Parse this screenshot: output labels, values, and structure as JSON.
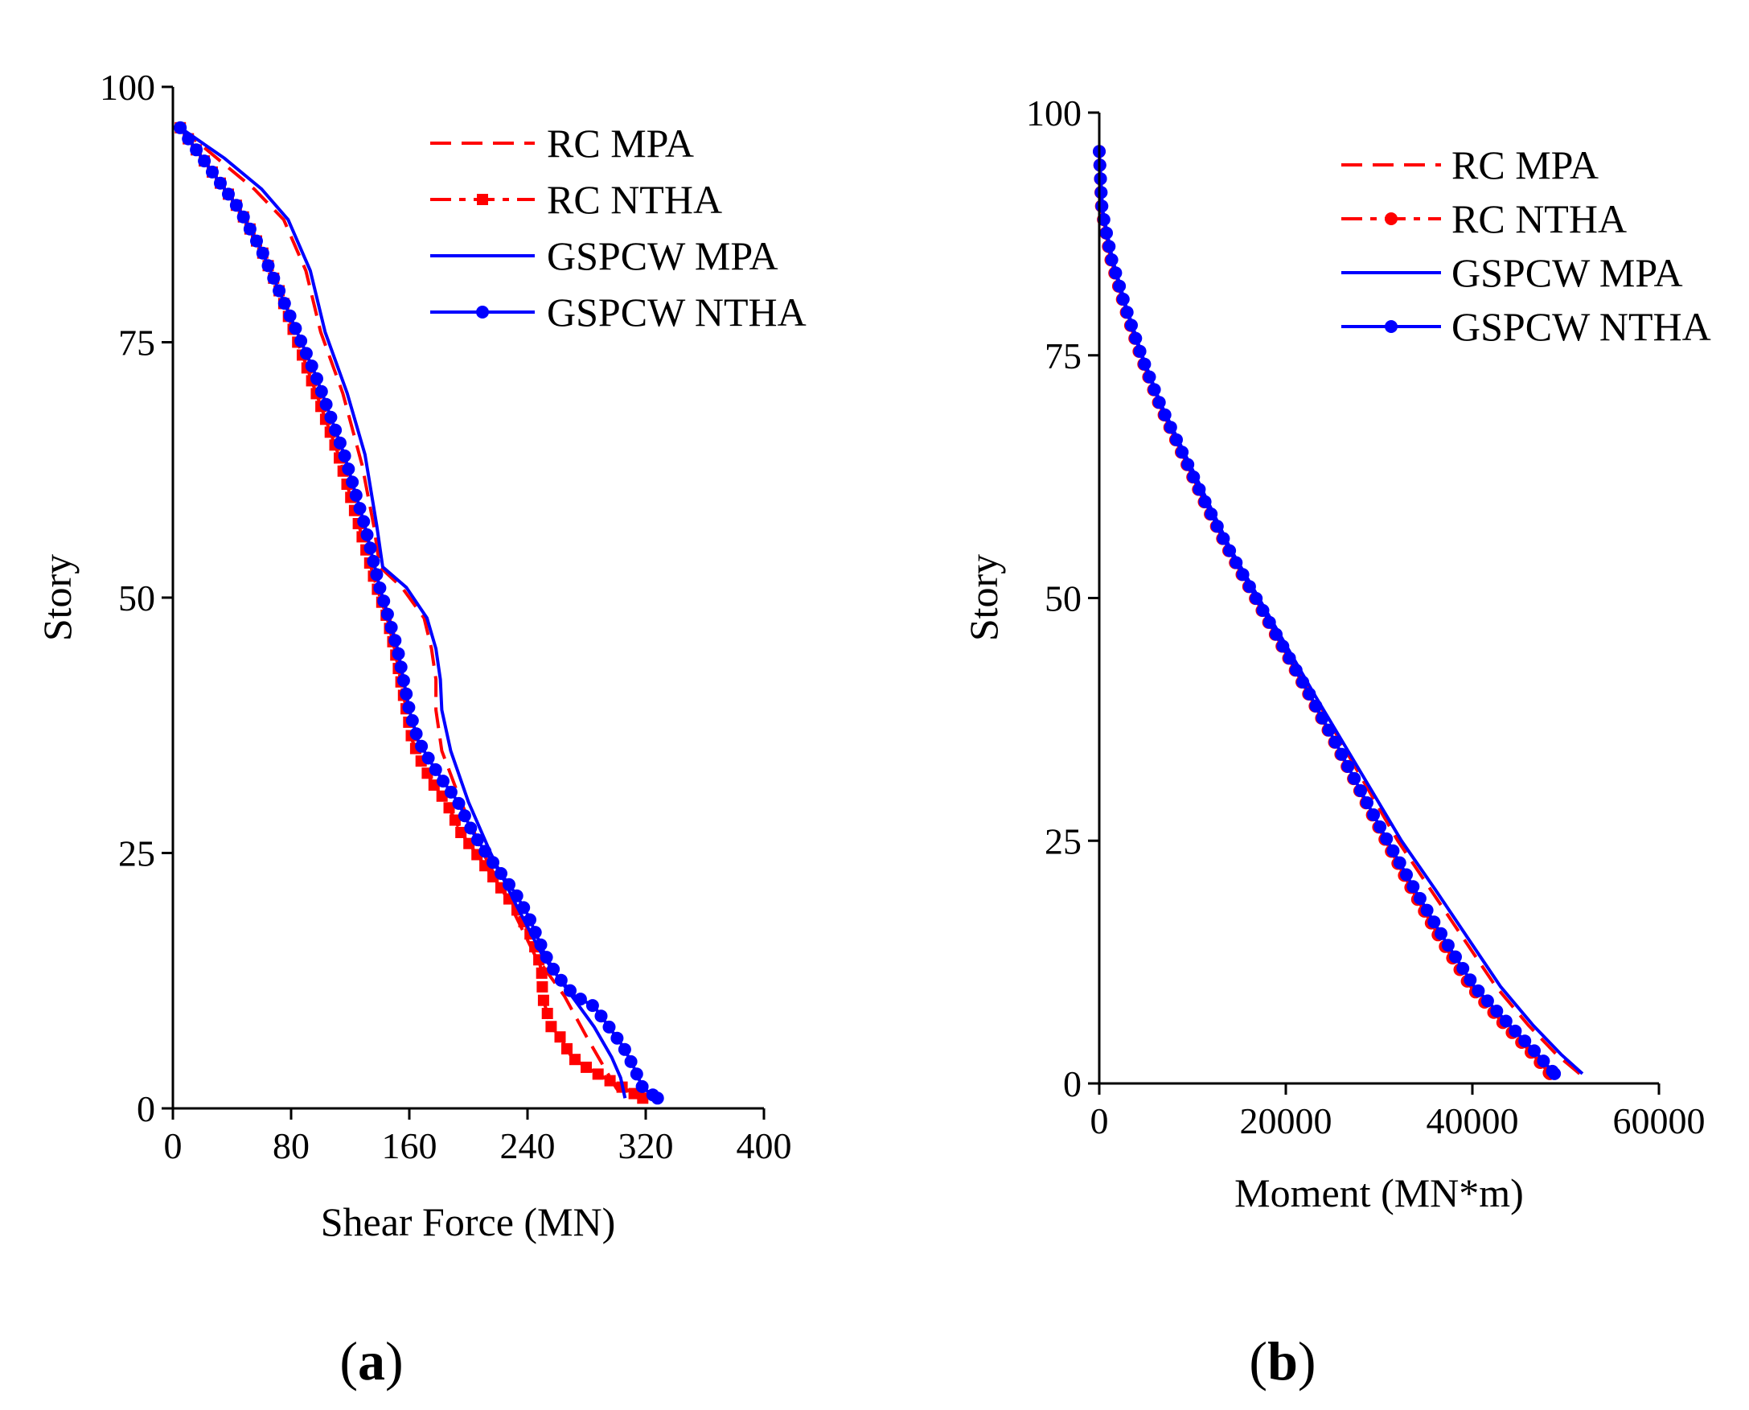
{
  "colors": {
    "rc": "#ff0000",
    "gspcw": "#0000ff",
    "axis": "#000000"
  },
  "legend": [
    "RC MPA",
    "RC NTHA",
    "GSPCW MPA",
    "GSPCW NTHA"
  ],
  "chart_data": [
    {
      "id": "a",
      "panel_label": "(a)",
      "panel_open": "(",
      "panel_letter": "a",
      "panel_close": ")",
      "type": "line",
      "title": "",
      "xlabel": "Shear Force (MN)",
      "ylabel": "Story",
      "xlim": [
        0,
        400
      ],
      "ylim": [
        0,
        100
      ],
      "xticks": [
        0,
        80,
        160,
        240,
        320,
        400
      ],
      "yticks": [
        0,
        25,
        50,
        75,
        100
      ],
      "grid": false,
      "legend_position": "top-right",
      "series": [
        {
          "name": "RC MPA",
          "style": "dashed",
          "marker": "none",
          "points": [
            [
              5,
              96
            ],
            [
              30,
              93
            ],
            [
              55,
              90
            ],
            [
              75,
              87
            ],
            [
              90,
              82
            ],
            [
              100,
              76
            ],
            [
              115,
              70
            ],
            [
              128,
              63
            ],
            [
              136,
              57
            ],
            [
              140,
              53
            ],
            [
              155,
              51
            ],
            [
              170,
              48
            ],
            [
              175,
              45
            ],
            [
              178,
              42
            ],
            [
              178,
              39
            ],
            [
              182,
              35
            ],
            [
              195,
              30
            ],
            [
              210,
              25
            ],
            [
              228,
              20
            ],
            [
              245,
              15
            ],
            [
              265,
              11
            ],
            [
              280,
              7
            ],
            [
              292,
              4
            ],
            [
              300,
              2
            ],
            [
              305,
              1
            ]
          ]
        },
        {
          "name": "RC NTHA",
          "style": "dashdot",
          "marker": "square",
          "points": [
            [
              5,
              96
            ],
            [
              25,
              92
            ],
            [
              45,
              88
            ],
            [
              60,
              84
            ],
            [
              72,
              80
            ],
            [
              82,
              76
            ],
            [
              92,
              72
            ],
            [
              102,
              68
            ],
            [
              112,
              64
            ],
            [
              120,
              60
            ],
            [
              126,
              57
            ],
            [
              132,
              54
            ],
            [
              138,
              51
            ],
            [
              145,
              48
            ],
            [
              150,
              45
            ],
            [
              154,
              42
            ],
            [
              158,
              39
            ],
            [
              162,
              36
            ],
            [
              168,
              34
            ],
            [
              175,
              32
            ],
            [
              185,
              30
            ],
            [
              195,
              27
            ],
            [
              205,
              25
            ],
            [
              215,
              23
            ],
            [
              225,
              21
            ],
            [
              235,
              19
            ],
            [
              242,
              17
            ],
            [
              247,
              15
            ],
            [
              250,
              13
            ],
            [
              250,
              11
            ],
            [
              252,
              10
            ],
            [
              256,
              8
            ],
            [
              262,
              7
            ],
            [
              270,
              5
            ],
            [
              280,
              4
            ],
            [
              292,
              3
            ],
            [
              305,
              2
            ],
            [
              318,
              1
            ]
          ]
        },
        {
          "name": "GSPCW MPA",
          "style": "solid",
          "marker": "none",
          "points": [
            [
              5,
              96
            ],
            [
              35,
              93
            ],
            [
              60,
              90
            ],
            [
              78,
              87
            ],
            [
              93,
              82
            ],
            [
              103,
              76
            ],
            [
              118,
              70
            ],
            [
              130,
              64
            ],
            [
              138,
              57
            ],
            [
              142,
              53
            ],
            [
              158,
              51
            ],
            [
              172,
              48
            ],
            [
              178,
              45
            ],
            [
              181,
              42
            ],
            [
              182,
              39
            ],
            [
              188,
              35
            ],
            [
              200,
              30
            ],
            [
              215,
              25
            ],
            [
              232,
              20
            ],
            [
              250,
              15
            ],
            [
              270,
              11
            ],
            [
              285,
              8
            ],
            [
              297,
              5
            ],
            [
              303,
              3
            ],
            [
              306,
              1
            ]
          ]
        },
        {
          "name": "GSPCW NTHA",
          "style": "solid",
          "marker": "circle",
          "points": [
            [
              5,
              96
            ],
            [
              25,
              92
            ],
            [
              45,
              88
            ],
            [
              60,
              84
            ],
            [
              72,
              80
            ],
            [
              84,
              76
            ],
            [
              96,
              72
            ],
            [
              106,
              68
            ],
            [
              116,
              64
            ],
            [
              124,
              60
            ],
            [
              130,
              57
            ],
            [
              135,
              54
            ],
            [
              140,
              51
            ],
            [
              146,
              48
            ],
            [
              152,
              45
            ],
            [
              156,
              42
            ],
            [
              160,
              39
            ],
            [
              166,
              36
            ],
            [
              174,
              34
            ],
            [
              183,
              32
            ],
            [
              193,
              30
            ],
            [
              203,
              27
            ],
            [
              212,
              25
            ],
            [
              222,
              23
            ],
            [
              232,
              21
            ],
            [
              240,
              19
            ],
            [
              246,
              17
            ],
            [
              252,
              15
            ],
            [
              260,
              13
            ],
            [
              272,
              11
            ],
            [
              285,
              10
            ],
            [
              295,
              8
            ],
            [
              305,
              6
            ],
            [
              312,
              4
            ],
            [
              318,
              2
            ],
            [
              328,
              1
            ]
          ]
        }
      ]
    },
    {
      "id": "b",
      "panel_label": "(b)",
      "panel_open": "(",
      "panel_letter": "b",
      "panel_close": ")",
      "type": "line",
      "title": "",
      "xlabel": "Moment (MN*m)",
      "ylabel": "Story",
      "xlim": [
        0,
        60000
      ],
      "ylim": [
        0,
        100
      ],
      "xticks": [
        0,
        20000,
        40000,
        60000
      ],
      "yticks": [
        0,
        25,
        50,
        75,
        100
      ],
      "grid": false,
      "legend_position": "top-right",
      "series": [
        {
          "name": "RC MPA",
          "style": "dashed",
          "marker": "none",
          "points": [
            [
              0,
              96
            ],
            [
              300,
              90
            ],
            [
              1300,
              85
            ],
            [
              2800,
              80
            ],
            [
              4500,
              75
            ],
            [
              6500,
              70
            ],
            [
              9000,
              65
            ],
            [
              11500,
              60
            ],
            [
              14000,
              55
            ],
            [
              17000,
              50
            ],
            [
              20000,
              45
            ],
            [
              23000,
              40
            ],
            [
              26000,
              35
            ],
            [
              29000,
              30
            ],
            [
              32000,
              25
            ],
            [
              35500,
              20
            ],
            [
              39000,
              15
            ],
            [
              42500,
              10
            ],
            [
              46000,
              6
            ],
            [
              49000,
              3
            ],
            [
              51500,
              1
            ]
          ]
        },
        {
          "name": "RC NTHA",
          "style": "dashdot",
          "marker": "circle",
          "points": [
            [
              0,
              96
            ],
            [
              250,
              90
            ],
            [
              1200,
              85
            ],
            [
              2700,
              80
            ],
            [
              4400,
              75
            ],
            [
              6400,
              70
            ],
            [
              8800,
              65
            ],
            [
              11200,
              60
            ],
            [
              13800,
              55
            ],
            [
              16700,
              50
            ],
            [
              19600,
              45
            ],
            [
              22500,
              40
            ],
            [
              25300,
              35
            ],
            [
              28000,
              30
            ],
            [
              30700,
              25
            ],
            [
              33500,
              20
            ],
            [
              36500,
              15
            ],
            [
              39800,
              10
            ],
            [
              43500,
              6
            ],
            [
              46500,
              3
            ],
            [
              48300,
              1
            ]
          ]
        },
        {
          "name": "GSPCW MPA",
          "style": "solid",
          "marker": "none",
          "points": [
            [
              0,
              96
            ],
            [
              350,
              90
            ],
            [
              1400,
              85
            ],
            [
              2900,
              80
            ],
            [
              4600,
              75
            ],
            [
              6600,
              70
            ],
            [
              9100,
              65
            ],
            [
              11600,
              60
            ],
            [
              14100,
              55
            ],
            [
              17100,
              50
            ],
            [
              20100,
              45
            ],
            [
              23100,
              40
            ],
            [
              26200,
              35
            ],
            [
              29300,
              30
            ],
            [
              32400,
              25
            ],
            [
              36000,
              20
            ],
            [
              39500,
              15
            ],
            [
              43000,
              10
            ],
            [
              46500,
              6
            ],
            [
              49500,
              3
            ],
            [
              51800,
              1
            ]
          ]
        },
        {
          "name": "GSPCW NTHA",
          "style": "solid",
          "marker": "circle",
          "points": [
            [
              0,
              96
            ],
            [
              300,
              90
            ],
            [
              1300,
              85
            ],
            [
              2800,
              80
            ],
            [
              4500,
              75
            ],
            [
              6500,
              70
            ],
            [
              8900,
              65
            ],
            [
              11300,
              60
            ],
            [
              13900,
              55
            ],
            [
              16800,
              50
            ],
            [
              19700,
              45
            ],
            [
              22600,
              40
            ],
            [
              25400,
              35
            ],
            [
              28100,
              30
            ],
            [
              30900,
              25
            ],
            [
              33800,
              20
            ],
            [
              36900,
              15
            ],
            [
              40200,
              10
            ],
            [
              44000,
              6
            ],
            [
              47000,
              3
            ],
            [
              48800,
              1
            ]
          ]
        }
      ]
    }
  ]
}
